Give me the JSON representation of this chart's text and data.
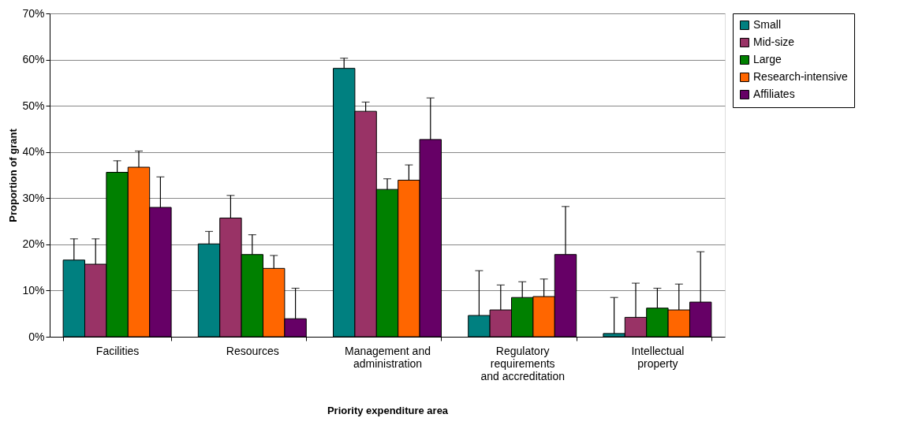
{
  "chart_data": {
    "type": "bar",
    "xlabel": "Priority expenditure area",
    "ylabel": "Proportion of grant",
    "categories": [
      "Facilities",
      "Resources",
      "Management and\nadministration",
      "Regulatory\nrequirements\nand accreditation",
      "Intellectual\nproperty"
    ],
    "series": [
      {
        "name": "Small",
        "color": "#008080",
        "values": [
          16.6,
          20.1,
          58.1,
          4.6,
          0.7
        ],
        "errors": [
          [
            16.6,
            21.2
          ],
          [
            20.1,
            22.8
          ],
          [
            58.1,
            60.3
          ],
          [
            4.6,
            14.3
          ],
          [
            0.7,
            8.5
          ]
        ]
      },
      {
        "name": "Mid-size",
        "color": "#993366",
        "values": [
          15.7,
          25.7,
          48.8,
          5.8,
          4.2
        ],
        "errors": [
          [
            15.7,
            21.2
          ],
          [
            25.7,
            30.6
          ],
          [
            48.8,
            50.8
          ],
          [
            5.8,
            11.2
          ],
          [
            4.2,
            11.6
          ]
        ]
      },
      {
        "name": "Large",
        "color": "#008000",
        "values": [
          35.6,
          17.8,
          31.9,
          8.5,
          6.2
        ],
        "errors": [
          [
            35.6,
            38.1
          ],
          [
            17.8,
            22.1
          ],
          [
            31.9,
            34.2
          ],
          [
            8.5,
            11.9
          ],
          [
            6.2,
            10.5
          ]
        ]
      },
      {
        "name": "Research-intensive",
        "color": "#ff6600",
        "values": [
          36.7,
          14.8,
          33.9,
          8.7,
          5.8
        ],
        "errors": [
          [
            36.7,
            40.2
          ],
          [
            14.8,
            17.6
          ],
          [
            33.9,
            37.2
          ],
          [
            8.7,
            12.5
          ],
          [
            5.8,
            11.4
          ]
        ]
      },
      {
        "name": "Affiliates",
        "color": "#660066",
        "values": [
          28.0,
          3.9,
          42.7,
          17.8,
          7.5
        ],
        "errors": [
          [
            28.0,
            34.6
          ],
          [
            3.9,
            10.5
          ],
          [
            42.7,
            51.7
          ],
          [
            17.8,
            28.2
          ],
          [
            7.5,
            18.4
          ]
        ]
      }
    ],
    "ylim": [
      0,
      70
    ],
    "yticks": [
      {
        "value": 0,
        "label": "0%"
      },
      {
        "value": 10,
        "label": "10%"
      },
      {
        "value": 20,
        "label": "20%"
      },
      {
        "value": 30,
        "label": "30%"
      },
      {
        "value": 40,
        "label": "40%"
      },
      {
        "value": 50,
        "label": "50%"
      },
      {
        "value": 60,
        "label": "60%"
      },
      {
        "value": 70,
        "label": "70%"
      }
    ],
    "grid": "y",
    "legend": "right"
  }
}
